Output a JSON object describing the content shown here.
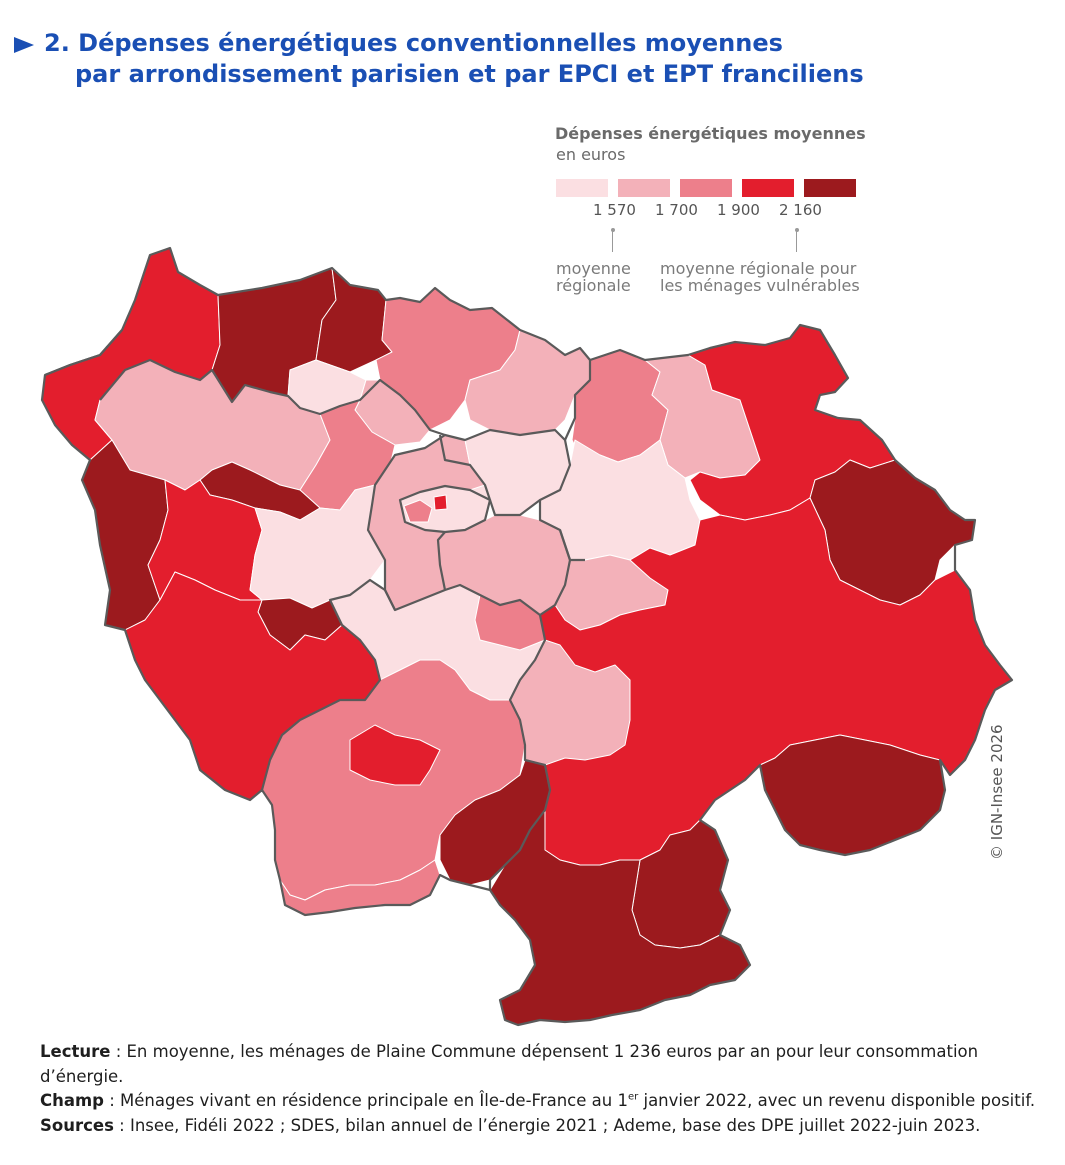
{
  "title": {
    "line1": "2. Dépenses énergétiques conventionnelles moyennes",
    "line2": "par arrondissement parisien et par EPCI et EPT franciliens"
  },
  "legend": {
    "title": "Dépenses énergétiques moyennes",
    "unit": "en euros",
    "colors": [
      "#fbdfe2",
      "#f3b1b9",
      "#ed7f8b",
      "#e31e2d",
      "#9c1a1e"
    ],
    "thresholds": [
      "1 570",
      "1 700",
      "1 900",
      "2 160"
    ],
    "note_regional_l1": "moyenne",
    "note_regional_l2": "régionale",
    "note_vulnerable_l1": "moyenne régionale pour",
    "note_vulnerable_l2": "les ménages vulnérables"
  },
  "copyright": "© IGN-Insee 2026",
  "footer": {
    "lecture_label": "Lecture",
    "lecture_text": " : En moyenne, les ménages de Plaine Commune dépensent 1 236 euros par an pour leur consommation d’énergie.",
    "champ_label": "Champ",
    "champ_text_a": " : Ménages vivant en résidence principale en Île-de-France au 1",
    "champ_sup": "er",
    "champ_text_b": " janvier 2022, avec un revenu disponible positif.",
    "sources_label": "Sources",
    "sources_text": " : Insee, Fidéli 2022 ; SDES, bilan annuel de l’énergie 2021 ; Ademe, base des DPE juillet 2022-juin 2023."
  },
  "map_regions": [
    {
      "id": "nw-corner",
      "class": 4
    },
    {
      "id": "north-vexin-west",
      "class": 5
    },
    {
      "id": "north-vexin-east",
      "class": 5
    },
    {
      "id": "north-center-1",
      "class": 1
    },
    {
      "id": "north-center-2",
      "class": 3
    },
    {
      "id": "north-center-3",
      "class": 2
    },
    {
      "id": "north-east-1",
      "class": 2
    },
    {
      "id": "north-east-2",
      "class": 3
    },
    {
      "id": "north-east-3",
      "class": 2
    },
    {
      "id": "north-east-red",
      "class": 4
    },
    {
      "id": "west-large",
      "class": 2
    },
    {
      "id": "west-small",
      "class": 3
    },
    {
      "id": "west-dark",
      "class": 5
    },
    {
      "id": "west-dark-2",
      "class": 5
    },
    {
      "id": "yvelines-center",
      "class": 4
    },
    {
      "id": "yvelines-pale",
      "class": 1
    },
    {
      "id": "yvelines-small-dark",
      "class": 5
    },
    {
      "id": "south-west-red",
      "class": 4
    },
    {
      "id": "hauts-de-seine",
      "class": 2
    },
    {
      "id": "paris",
      "class": 1
    },
    {
      "id": "paris-arr-a",
      "class": 3
    },
    {
      "id": "paris-arr-b",
      "class": 4
    },
    {
      "id": "seine-saint-denis",
      "class": 1
    },
    {
      "id": "val-de-marne",
      "class": 2
    },
    {
      "id": "essonne-north",
      "class": 1
    },
    {
      "id": "essonne-medium",
      "class": 3
    },
    {
      "id": "essonne-west",
      "class": 3
    },
    {
      "id": "essonne-red",
      "class": 4
    },
    {
      "id": "essonne-dark",
      "class": 5
    },
    {
      "id": "essonne-south",
      "class": 3
    },
    {
      "id": "marne-pale",
      "class": 1
    },
    {
      "id": "marne-light",
      "class": 2
    },
    {
      "id": "seine-et-marne-east-dark",
      "class": 5
    },
    {
      "id": "seine-et-marne-red",
      "class": 4
    },
    {
      "id": "seine-et-marne-south-dark",
      "class": 5
    },
    {
      "id": "seine-et-marne-south-dark-2",
      "class": 5
    },
    {
      "id": "south-tip-dark",
      "class": 5
    },
    {
      "id": "center-south-pale",
      "class": 2
    }
  ]
}
